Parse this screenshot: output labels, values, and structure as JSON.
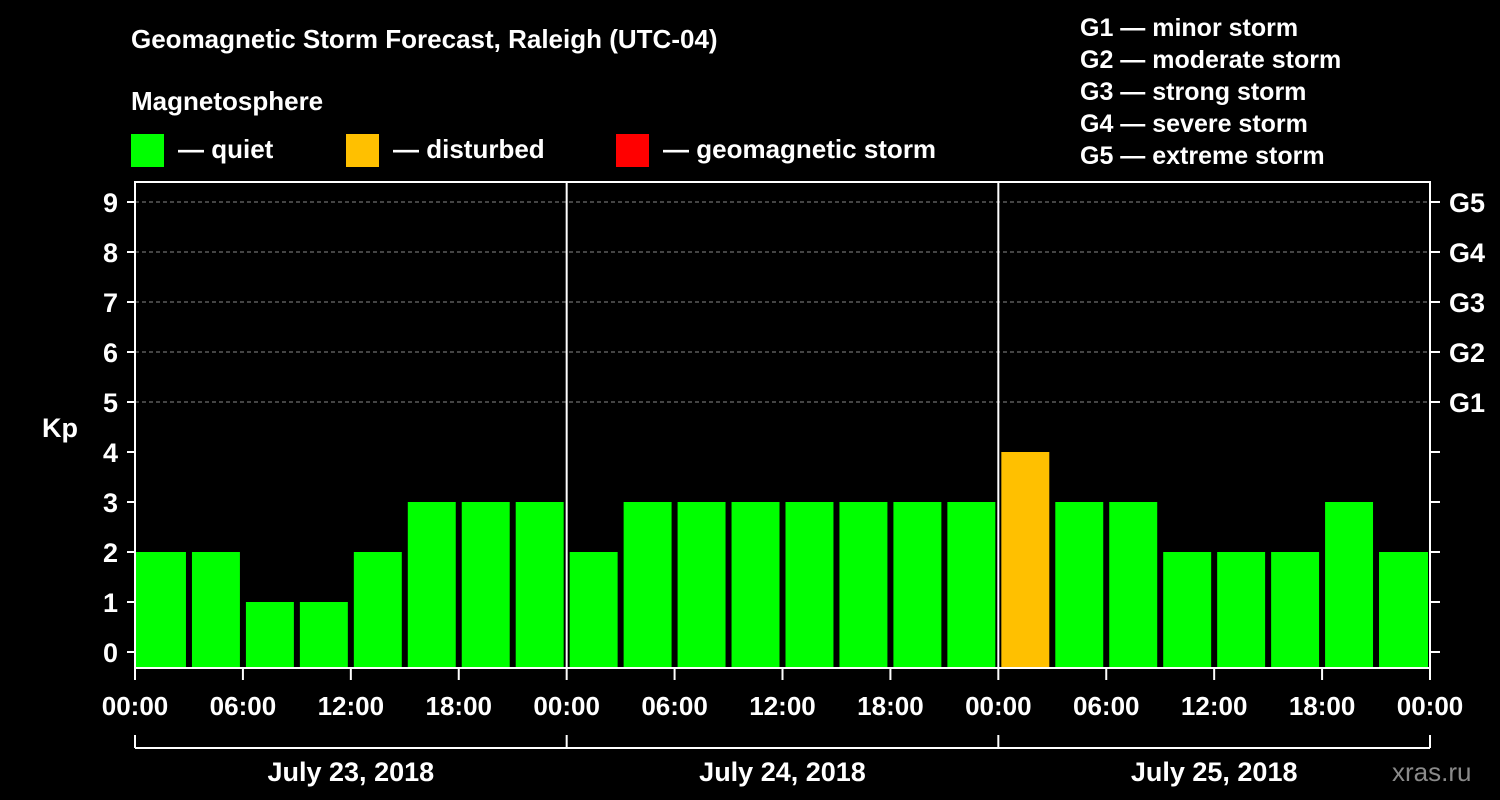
{
  "title": "Geomagnetic Storm Forecast, Raleigh (UTC-04)",
  "legend": {
    "heading": "Magnetosphere",
    "items": [
      {
        "label": "— quiet",
        "color": "#00ff00"
      },
      {
        "label": "— disturbed",
        "color": "#ffc000"
      },
      {
        "label": "— geomagnetic storm",
        "color": "#ff0000"
      }
    ]
  },
  "storm_levels": [
    "G1 — minor storm",
    "G2 — moderate storm",
    "G3 — strong storm",
    "G4 — severe storm",
    "G5 — extreme storm"
  ],
  "watermark": "xras.ru",
  "chart_data": {
    "type": "bar",
    "ylabel": "Kp",
    "ylim": [
      0,
      9
    ],
    "y_ticks": [
      0,
      1,
      2,
      3,
      4,
      5,
      6,
      7,
      8,
      9
    ],
    "right_axis_labels": [
      {
        "kp": 5,
        "label": "G1"
      },
      {
        "kp": 6,
        "label": "G2"
      },
      {
        "kp": 7,
        "label": "G3"
      },
      {
        "kp": 8,
        "label": "G4"
      },
      {
        "kp": 9,
        "label": "G5"
      }
    ],
    "grid": true,
    "x_tick_labels": [
      "00:00",
      "06:00",
      "12:00",
      "18:00",
      "00:00",
      "06:00",
      "12:00",
      "18:00",
      "00:00",
      "06:00",
      "12:00",
      "18:00",
      "00:00"
    ],
    "days": [
      "July 23, 2018",
      "July 24, 2018",
      "July 25, 2018"
    ],
    "bars": [
      {
        "start": "2018-07-23 00:00",
        "kp": 2,
        "level": "quiet"
      },
      {
        "start": "2018-07-23 03:00",
        "kp": 2,
        "level": "quiet"
      },
      {
        "start": "2018-07-23 06:00",
        "kp": 1,
        "level": "quiet"
      },
      {
        "start": "2018-07-23 09:00",
        "kp": 1,
        "level": "quiet"
      },
      {
        "start": "2018-07-23 12:00",
        "kp": 2,
        "level": "quiet"
      },
      {
        "start": "2018-07-23 15:00",
        "kp": 3,
        "level": "quiet"
      },
      {
        "start": "2018-07-23 18:00",
        "kp": 3,
        "level": "quiet"
      },
      {
        "start": "2018-07-23 21:00",
        "kp": 3,
        "level": "quiet"
      },
      {
        "start": "2018-07-24 00:00",
        "kp": 2,
        "level": "quiet"
      },
      {
        "start": "2018-07-24 03:00",
        "kp": 3,
        "level": "quiet"
      },
      {
        "start": "2018-07-24 06:00",
        "kp": 3,
        "level": "quiet"
      },
      {
        "start": "2018-07-24 09:00",
        "kp": 3,
        "level": "quiet"
      },
      {
        "start": "2018-07-24 12:00",
        "kp": 3,
        "level": "quiet"
      },
      {
        "start": "2018-07-24 15:00",
        "kp": 3,
        "level": "quiet"
      },
      {
        "start": "2018-07-24 18:00",
        "kp": 3,
        "level": "quiet"
      },
      {
        "start": "2018-07-24 21:00",
        "kp": 3,
        "level": "quiet"
      },
      {
        "start": "2018-07-25 00:00",
        "kp": 4,
        "level": "disturbed"
      },
      {
        "start": "2018-07-25 03:00",
        "kp": 3,
        "level": "quiet"
      },
      {
        "start": "2018-07-25 06:00",
        "kp": 3,
        "level": "quiet"
      },
      {
        "start": "2018-07-25 09:00",
        "kp": 2,
        "level": "quiet"
      },
      {
        "start": "2018-07-25 12:00",
        "kp": 2,
        "level": "quiet"
      },
      {
        "start": "2018-07-25 15:00",
        "kp": 2,
        "level": "quiet"
      },
      {
        "start": "2018-07-25 18:00",
        "kp": 3,
        "level": "quiet"
      },
      {
        "start": "2018-07-25 21:00",
        "kp": 2,
        "level": "quiet"
      }
    ]
  }
}
